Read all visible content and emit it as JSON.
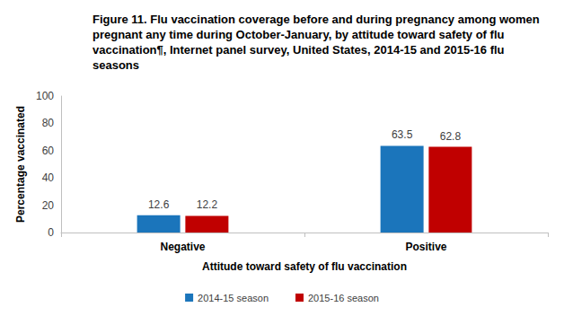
{
  "chart_data": {
    "type": "bar",
    "title": "Figure 11. Flu vaccination coverage before and during pregnancy among women pregnant any time during October-January, by attitude toward safety of flu vaccination¶, Internet panel survey, United States, 2014-15 and 2015-16 flu seasons",
    "categories": [
      "Negative",
      "Positive"
    ],
    "x_label": "Attitude toward safety of flu vaccination",
    "y_label": "Percentage vaccinated",
    "series": [
      {
        "name": "2014-15 season",
        "color": "#1b75bb",
        "values": [
          12.6,
          63.5
        ]
      },
      {
        "name": "2015-16 season",
        "color": "#c00000",
        "values": [
          12.2,
          62.8
        ]
      }
    ],
    "ylim": [
      0,
      100
    ],
    "yticks": [
      0,
      20,
      40,
      60,
      80,
      100
    ],
    "grid": false,
    "legend": "bottom",
    "data_labels": true
  }
}
